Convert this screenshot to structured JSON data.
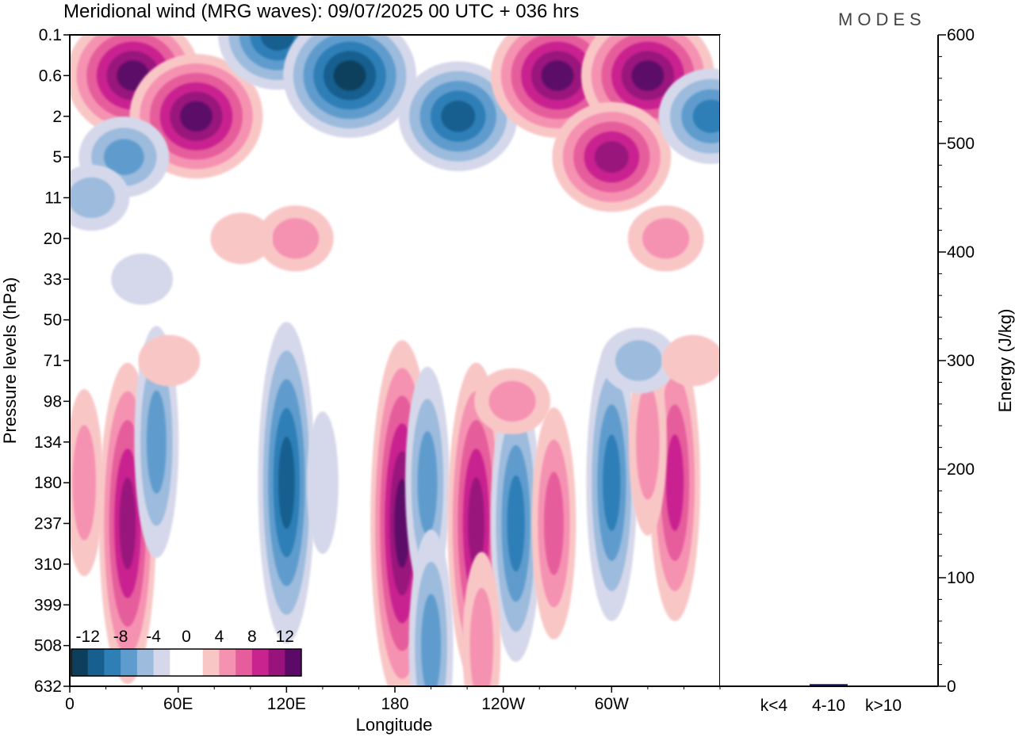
{
  "title": "Meridional wind (MRG waves):  09/07/2025  00 UTC  + 036 hrs",
  "logo": "MODES",
  "colors": {
    "neg": [
      "#0d3f5c",
      "#165f8f",
      "#2f7fb7",
      "#5e9ccd",
      "#9cbbdd",
      "#d5d8ea"
    ],
    "pos": [
      "#f9c6c6",
      "#f592b1",
      "#e65d9c",
      "#c92390",
      "#99137d",
      "#5c0a68"
    ]
  },
  "chart_data": [
    {
      "type": "heatmap",
      "title": "Meridional wind (MRG waves):  09/07/2025  00 UTC  + 036 hrs",
      "xlabel": "Longitude",
      "ylabel": "Pressure levels (hPa)",
      "x_ticks": [
        "0",
        "60E",
        "120E",
        "180",
        "120W",
        "60W"
      ],
      "x_tick_values": [
        0,
        60,
        120,
        180,
        240,
        300
      ],
      "xlim": [
        0,
        360
      ],
      "y_ticks": [
        "0.1",
        "0.6",
        "2",
        "5",
        "11",
        "20",
        "33",
        "50",
        "71",
        "98",
        "134",
        "180",
        "237",
        "310",
        "399",
        "508",
        "632"
      ],
      "colorbar": {
        "labels": [
          "-12",
          "-8",
          "-4",
          "0",
          "4",
          "8",
          "12"
        ],
        "levels": [
          -14,
          -12,
          -10,
          -8,
          -6,
          -4,
          -2,
          2,
          4,
          6,
          8,
          10,
          12,
          14
        ]
      },
      "features": [
        {
          "lon": 35,
          "level": "0.6",
          "value": 12
        },
        {
          "lon": 70,
          "level": "2",
          "value": 13
        },
        {
          "lon": 115,
          "level": "0.1",
          "value": -11
        },
        {
          "lon": 155,
          "level": "0.6",
          "value": -15
        },
        {
          "lon": 215,
          "level": "2",
          "value": -10
        },
        {
          "lon": 270,
          "level": "0.6",
          "value": 14
        },
        {
          "lon": 320,
          "level": "0.6",
          "value": 15
        },
        {
          "lon": 300,
          "level": "5",
          "value": 11
        },
        {
          "lon": 355,
          "level": "2",
          "value": -9
        },
        {
          "lon": 30,
          "level": "5",
          "value": -6
        },
        {
          "lon": 12,
          "level": "11",
          "value": -5
        },
        {
          "lon": 125,
          "level": "20",
          "value": 5
        },
        {
          "lon": 330,
          "level": "20",
          "value": 4
        },
        {
          "lon": 95,
          "level": "20",
          "value": 3
        },
        {
          "lon": 120,
          "level": "180",
          "value": -10
        },
        {
          "lon": 140,
          "level": "180",
          "value": -3
        },
        {
          "lon": 184,
          "level": "237",
          "value": 14
        },
        {
          "lon": 198,
          "level": "180",
          "value": -7
        },
        {
          "lon": 225,
          "level": "237",
          "value": 11
        },
        {
          "lon": 247,
          "level": "237",
          "value": -9
        },
        {
          "lon": 268,
          "level": "237",
          "value": 7
        },
        {
          "lon": 300,
          "level": "180",
          "value": -8
        },
        {
          "lon": 335,
          "level": "180",
          "value": 9
        },
        {
          "lon": 320,
          "level": "134",
          "value": 5
        },
        {
          "lon": 32,
          "level": "237",
          "value": 10
        },
        {
          "lon": 48,
          "level": "134",
          "value": -6
        },
        {
          "lon": 8,
          "level": "180",
          "value": 4
        },
        {
          "lon": 200,
          "level": "508",
          "value": -6
        },
        {
          "lon": 228,
          "level": "508",
          "value": 4
        },
        {
          "lon": 245,
          "level": "98",
          "value": 5
        },
        {
          "lon": 315,
          "level": "71",
          "value": -4
        },
        {
          "lon": 345,
          "level": "71",
          "value": 3
        },
        {
          "lon": 55,
          "level": "71",
          "value": 3
        },
        {
          "lon": 40,
          "level": "33",
          "value": -3
        }
      ]
    },
    {
      "type": "bar",
      "categories": [
        "k<4",
        "4-10",
        "k>10"
      ],
      "values": [
        0.5,
        2,
        0.5
      ],
      "ylabel": "Energy (J/kg)",
      "ylim": [
        0,
        600
      ],
      "y_ticks": [
        "0",
        "100",
        "200",
        "300",
        "400",
        "500",
        "600"
      ],
      "bar_color": "#1a1a5a"
    }
  ]
}
